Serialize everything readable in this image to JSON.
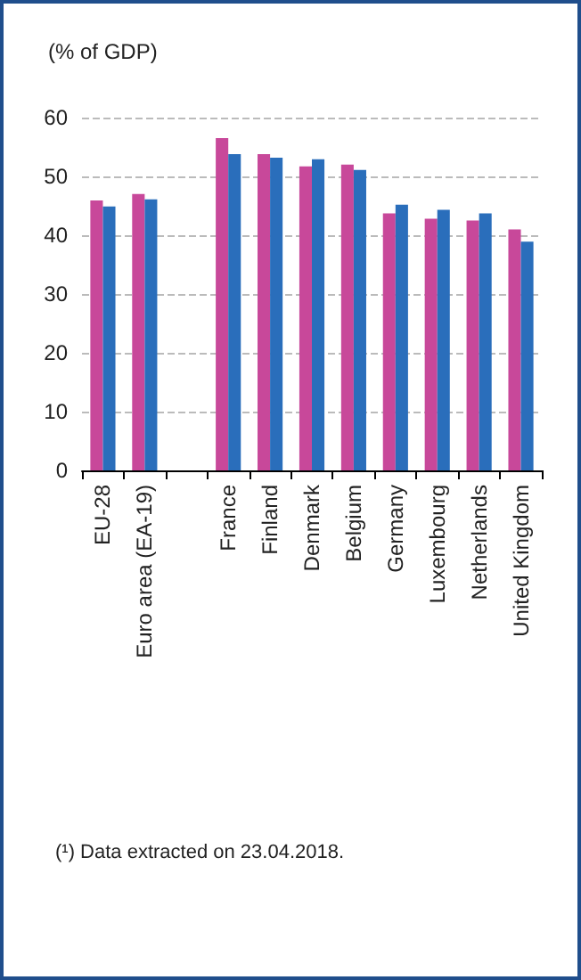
{
  "chart_data": {
    "type": "bar",
    "ylabel": "(% of GDP)",
    "categories": [
      "EU-28",
      "Euro area (EA-19)",
      null,
      "France",
      "Finland",
      "Denmark",
      "Belgium",
      "Germany",
      "Luxembourg",
      "Netherlands",
      "United Kingdom"
    ],
    "series": [
      {
        "color": "#c8489a",
        "values": [
          45.9,
          47.0,
          null,
          56.5,
          53.8,
          51.7,
          52.0,
          43.7,
          42.8,
          42.5,
          41.0
        ]
      },
      {
        "color": "#2a6ebb",
        "values": [
          44.9,
          46.1,
          null,
          53.8,
          53.2,
          52.9,
          51.1,
          45.2,
          44.3,
          43.7,
          38.9
        ]
      }
    ],
    "ylim": [
      0,
      60
    ],
    "yticks": [
      0,
      10,
      20,
      30,
      40,
      50,
      60
    ],
    "grid": "y",
    "annotations": [
      "(¹) Data extracted on 23.04.2018."
    ]
  }
}
